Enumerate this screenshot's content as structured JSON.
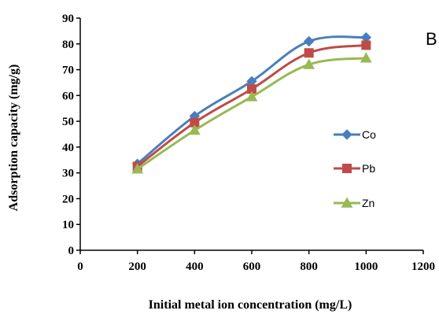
{
  "chart_data": {
    "type": "line",
    "panel_label": "B",
    "xlabel": "Initial metal ion concentration (mg/L)",
    "ylabel": "Adsorption capacity (mg/g)",
    "xlim": [
      0,
      1200
    ],
    "ylim": [
      0,
      90
    ],
    "xticks": [
      0,
      200,
      400,
      600,
      800,
      1000,
      1200
    ],
    "yticks": [
      0,
      10,
      20,
      30,
      40,
      50,
      60,
      70,
      80,
      90
    ],
    "grid": false,
    "legend_position": "right",
    "x": [
      200,
      400,
      600,
      800,
      1000
    ],
    "series": [
      {
        "name": "Co",
        "color": "#4a7ebb",
        "marker": "diamond",
        "values": [
          33.5,
          52,
          65.5,
          81,
          82.5
        ]
      },
      {
        "name": "Pb",
        "color": "#be4b48",
        "marker": "square",
        "values": [
          32.5,
          49.5,
          62.5,
          76.5,
          79.5
        ]
      },
      {
        "name": "Zn",
        "color": "#98b954",
        "marker": "triangle",
        "values": [
          31.5,
          46.5,
          59.5,
          72,
          74.5
        ]
      }
    ]
  }
}
